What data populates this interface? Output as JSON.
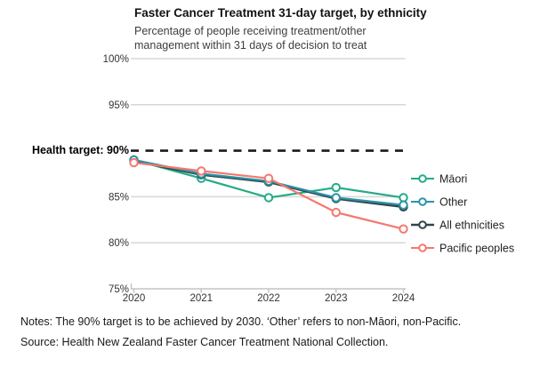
{
  "chart_data": {
    "type": "line",
    "title": "Faster Cancer Treatment 31-day target, by ethnicity",
    "subtitle": "Percentage of people receiving treatment/other management within 31 days of decision to treat",
    "categories": [
      "2020",
      "2021",
      "2022",
      "2023",
      "2024"
    ],
    "series": [
      {
        "name": "Māori",
        "color": "#24ab85",
        "values": [
          89.0,
          87.0,
          84.9,
          86.0,
          84.9
        ]
      },
      {
        "name": "Other",
        "color": "#2b93a8",
        "values": [
          89.0,
          87.5,
          86.7,
          84.9,
          84.1
        ]
      },
      {
        "name": "All ethnicities",
        "color": "#33444b",
        "values": [
          88.9,
          87.4,
          86.6,
          84.8,
          83.9
        ]
      },
      {
        "name": "Pacific peoples",
        "color": "#f4786e",
        "values": [
          88.7,
          87.8,
          87.0,
          83.3,
          81.5
        ]
      }
    ],
    "target": {
      "value": 90,
      "label": "Health target: 90%"
    },
    "ylim": [
      75,
      100
    ],
    "y_ticks": [
      {
        "value": 100,
        "label": "100%"
      },
      {
        "value": 95,
        "label": "95%"
      },
      {
        "value": 85,
        "label": "85%"
      },
      {
        "value": 80,
        "label": "80%"
      },
      {
        "value": 75,
        "label": "75%"
      }
    ],
    "legend_position": "right",
    "grid": "horizontal",
    "notes": "Notes: The 90% target is to be achieved by 2030. ‘Other’ refers to non-Māori, non-Pacific.",
    "source": "Source: Health New Zealand Faster Cancer Treatment National Collection."
  },
  "colors": {
    "grid": "#d9d9d9",
    "axis": "#c4c4c4",
    "target_line": "#1a1a1a",
    "tick_text": "#333333",
    "legend_text": "#222222",
    "marker_fill": "#ffffff"
  }
}
